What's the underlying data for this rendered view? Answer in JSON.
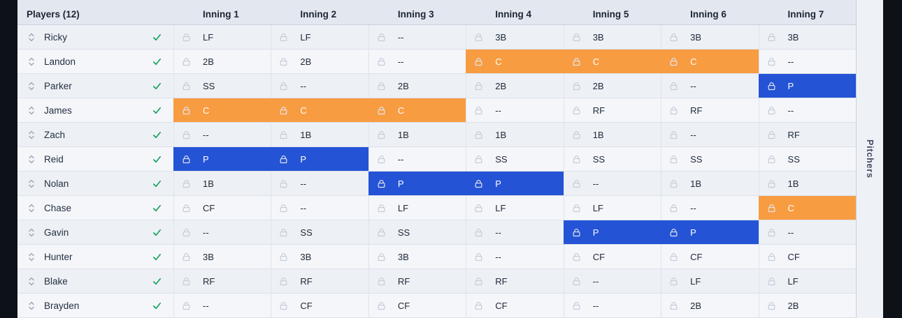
{
  "header": {
    "players_label": "Players (12)",
    "innings": [
      "Inning 1",
      "Inning 2",
      "Inning 3",
      "Inning 4",
      "Inning 5",
      "Inning 6",
      "Inning 7"
    ]
  },
  "side_tab": {
    "label": "Pitchers"
  },
  "colors": {
    "highlight_orange": "#f89c42",
    "highlight_blue": "#2453d6",
    "check_green": "#1aa061"
  },
  "players": [
    {
      "name": "Ricky",
      "checked": true,
      "assignments": [
        {
          "pos": "LF",
          "hl": ""
        },
        {
          "pos": "LF",
          "hl": ""
        },
        {
          "pos": "--",
          "hl": ""
        },
        {
          "pos": "3B",
          "hl": ""
        },
        {
          "pos": "3B",
          "hl": ""
        },
        {
          "pos": "3B",
          "hl": ""
        },
        {
          "pos": "3B",
          "hl": ""
        }
      ]
    },
    {
      "name": "Landon",
      "checked": true,
      "assignments": [
        {
          "pos": "2B",
          "hl": ""
        },
        {
          "pos": "2B",
          "hl": ""
        },
        {
          "pos": "--",
          "hl": ""
        },
        {
          "pos": "C",
          "hl": "orange"
        },
        {
          "pos": "C",
          "hl": "orange"
        },
        {
          "pos": "C",
          "hl": "orange"
        },
        {
          "pos": "--",
          "hl": ""
        }
      ]
    },
    {
      "name": "Parker",
      "checked": true,
      "assignments": [
        {
          "pos": "SS",
          "hl": ""
        },
        {
          "pos": "--",
          "hl": ""
        },
        {
          "pos": "2B",
          "hl": ""
        },
        {
          "pos": "2B",
          "hl": ""
        },
        {
          "pos": "2B",
          "hl": ""
        },
        {
          "pos": "--",
          "hl": ""
        },
        {
          "pos": "P",
          "hl": "blue"
        }
      ]
    },
    {
      "name": "James",
      "checked": true,
      "assignments": [
        {
          "pos": "C",
          "hl": "orange"
        },
        {
          "pos": "C",
          "hl": "orange"
        },
        {
          "pos": "C",
          "hl": "orange"
        },
        {
          "pos": "--",
          "hl": ""
        },
        {
          "pos": "RF",
          "hl": ""
        },
        {
          "pos": "RF",
          "hl": ""
        },
        {
          "pos": "--",
          "hl": ""
        }
      ]
    },
    {
      "name": "Zach",
      "checked": true,
      "assignments": [
        {
          "pos": "--",
          "hl": ""
        },
        {
          "pos": "1B",
          "hl": ""
        },
        {
          "pos": "1B",
          "hl": ""
        },
        {
          "pos": "1B",
          "hl": ""
        },
        {
          "pos": "1B",
          "hl": ""
        },
        {
          "pos": "--",
          "hl": ""
        },
        {
          "pos": "RF",
          "hl": ""
        }
      ]
    },
    {
      "name": "Reid",
      "checked": true,
      "assignments": [
        {
          "pos": "P",
          "hl": "blue"
        },
        {
          "pos": "P",
          "hl": "blue"
        },
        {
          "pos": "--",
          "hl": ""
        },
        {
          "pos": "SS",
          "hl": ""
        },
        {
          "pos": "SS",
          "hl": ""
        },
        {
          "pos": "SS",
          "hl": ""
        },
        {
          "pos": "SS",
          "hl": ""
        }
      ]
    },
    {
      "name": "Nolan",
      "checked": true,
      "assignments": [
        {
          "pos": "1B",
          "hl": ""
        },
        {
          "pos": "--",
          "hl": ""
        },
        {
          "pos": "P",
          "hl": "blue"
        },
        {
          "pos": "P",
          "hl": "blue"
        },
        {
          "pos": "--",
          "hl": ""
        },
        {
          "pos": "1B",
          "hl": ""
        },
        {
          "pos": "1B",
          "hl": ""
        }
      ]
    },
    {
      "name": "Chase",
      "checked": true,
      "assignments": [
        {
          "pos": "CF",
          "hl": ""
        },
        {
          "pos": "--",
          "hl": ""
        },
        {
          "pos": "LF",
          "hl": ""
        },
        {
          "pos": "LF",
          "hl": ""
        },
        {
          "pos": "LF",
          "hl": ""
        },
        {
          "pos": "--",
          "hl": ""
        },
        {
          "pos": "C",
          "hl": "orange"
        }
      ]
    },
    {
      "name": "Gavin",
      "checked": true,
      "assignments": [
        {
          "pos": "--",
          "hl": ""
        },
        {
          "pos": "SS",
          "hl": ""
        },
        {
          "pos": "SS",
          "hl": ""
        },
        {
          "pos": "--",
          "hl": ""
        },
        {
          "pos": "P",
          "hl": "blue"
        },
        {
          "pos": "P",
          "hl": "blue"
        },
        {
          "pos": "--",
          "hl": ""
        }
      ]
    },
    {
      "name": "Hunter",
      "checked": true,
      "assignments": [
        {
          "pos": "3B",
          "hl": ""
        },
        {
          "pos": "3B",
          "hl": ""
        },
        {
          "pos": "3B",
          "hl": ""
        },
        {
          "pos": "--",
          "hl": ""
        },
        {
          "pos": "CF",
          "hl": ""
        },
        {
          "pos": "CF",
          "hl": ""
        },
        {
          "pos": "CF",
          "hl": ""
        }
      ]
    },
    {
      "name": "Blake",
      "checked": true,
      "assignments": [
        {
          "pos": "RF",
          "hl": ""
        },
        {
          "pos": "RF",
          "hl": ""
        },
        {
          "pos": "RF",
          "hl": ""
        },
        {
          "pos": "RF",
          "hl": ""
        },
        {
          "pos": "--",
          "hl": ""
        },
        {
          "pos": "LF",
          "hl": ""
        },
        {
          "pos": "LF",
          "hl": ""
        }
      ]
    },
    {
      "name": "Brayden",
      "checked": true,
      "assignments": [
        {
          "pos": "--",
          "hl": ""
        },
        {
          "pos": "CF",
          "hl": ""
        },
        {
          "pos": "CF",
          "hl": ""
        },
        {
          "pos": "CF",
          "hl": ""
        },
        {
          "pos": "--",
          "hl": ""
        },
        {
          "pos": "2B",
          "hl": ""
        },
        {
          "pos": "2B",
          "hl": ""
        }
      ]
    }
  ]
}
